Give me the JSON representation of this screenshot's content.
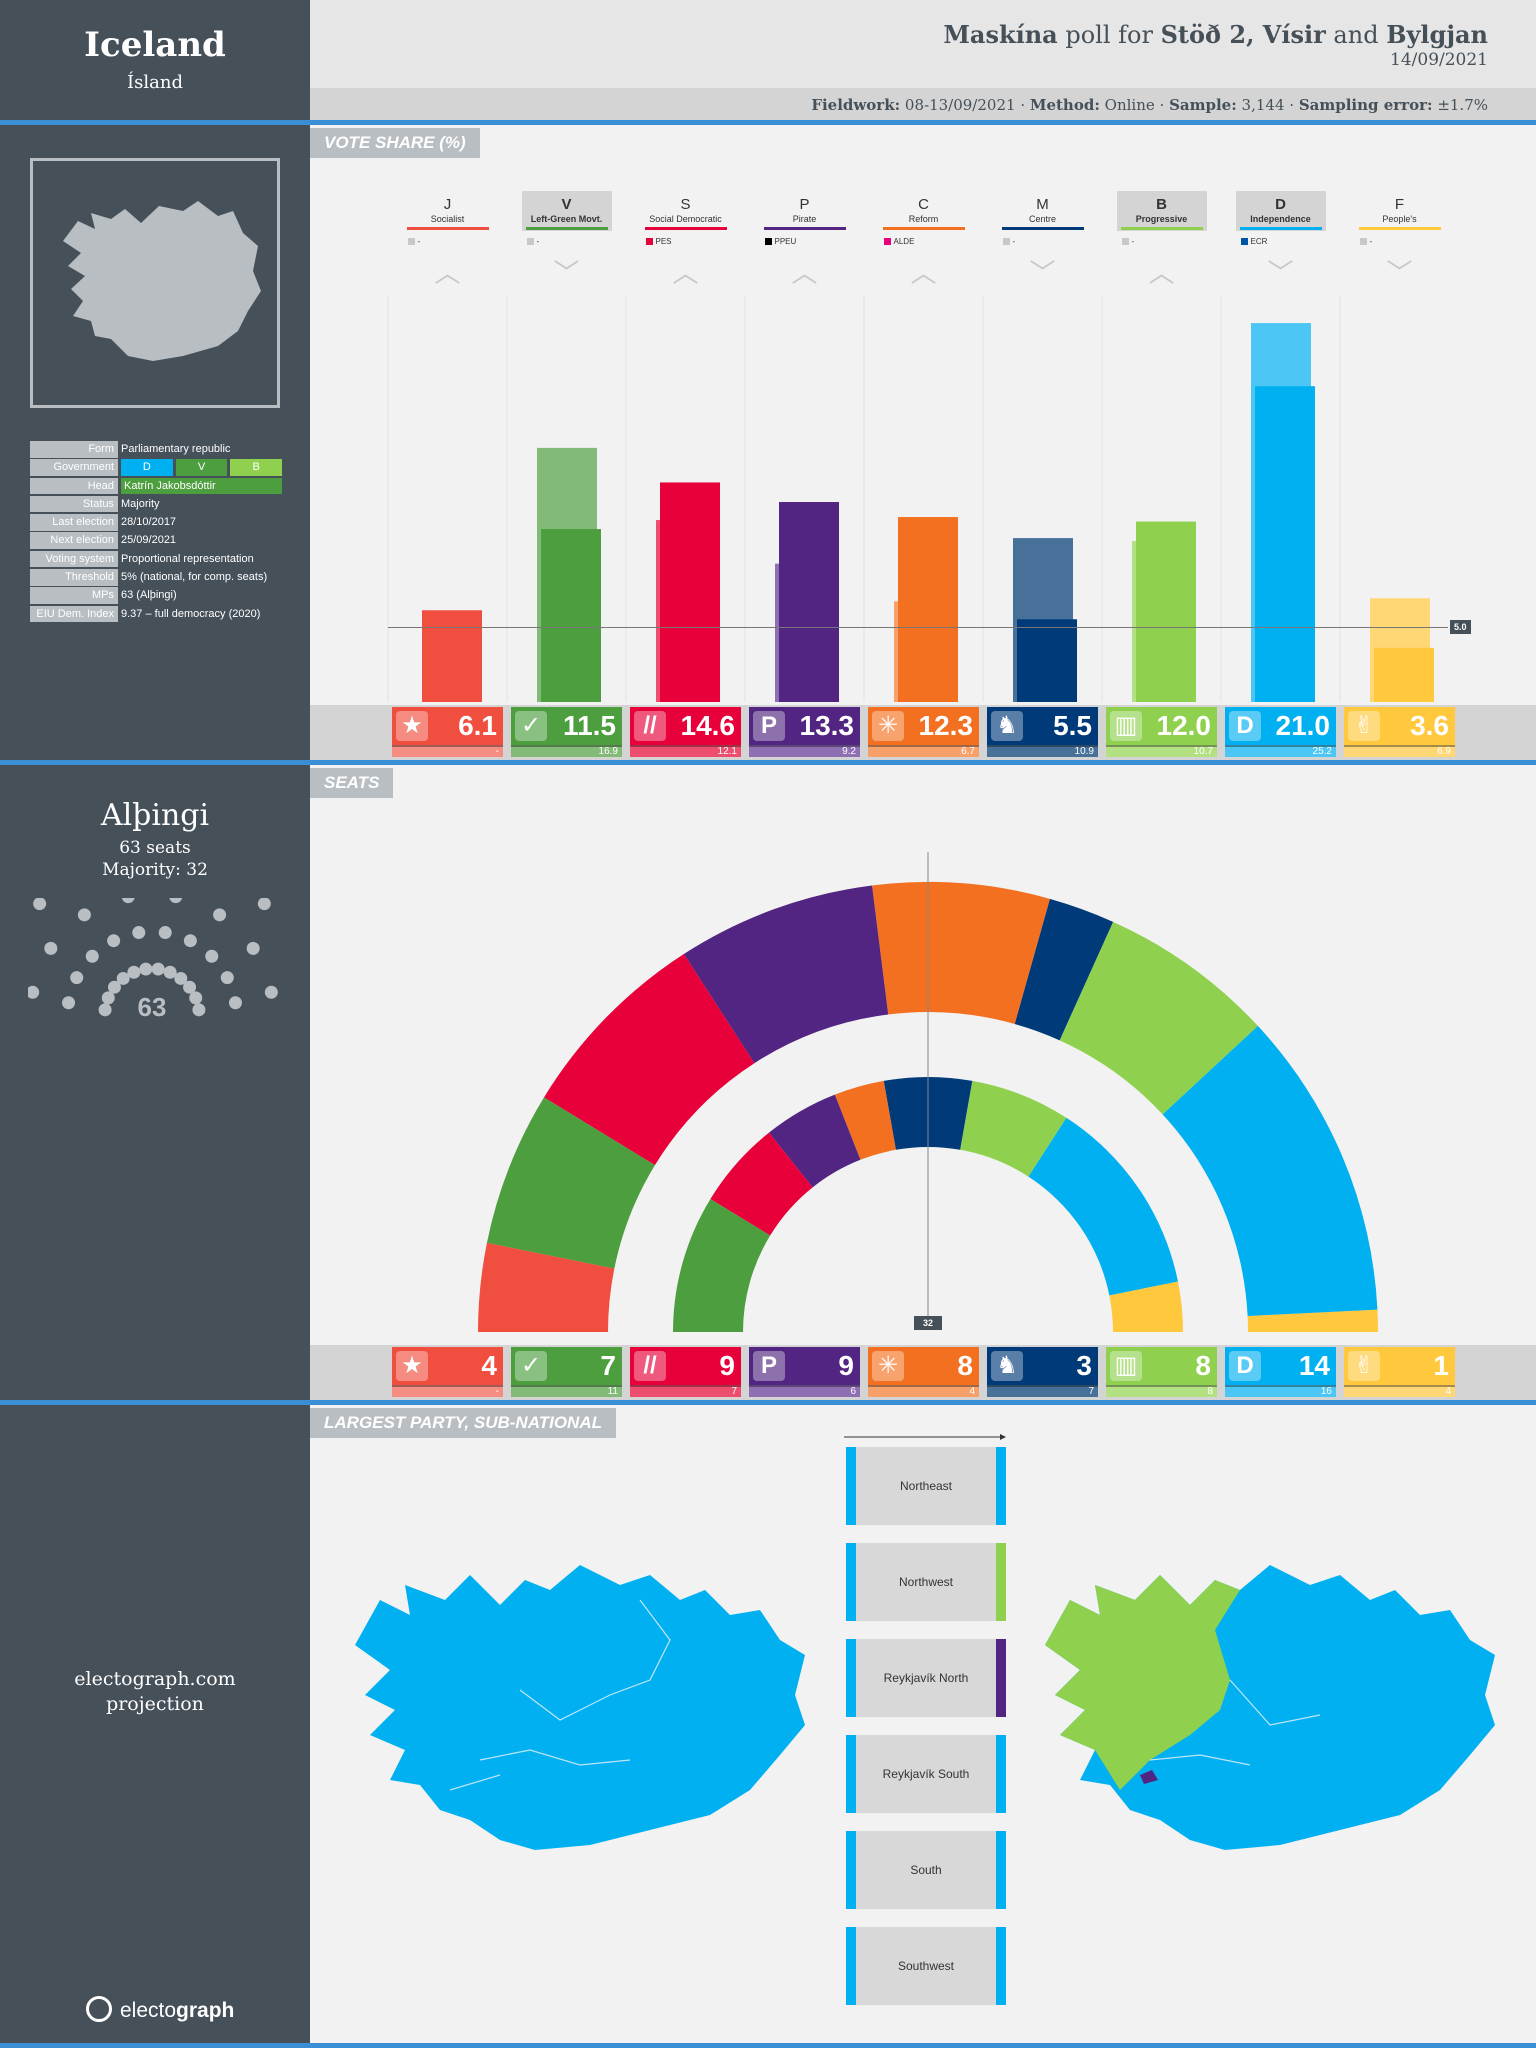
{
  "country": {
    "name": "Iceland",
    "local_name": "Ísland"
  },
  "info": [
    {
      "k": "Form",
      "v": "Parliamentary republic"
    },
    {
      "k": "Government",
      "v": ""
    },
    {
      "k": "Head",
      "v": "Katrín Jakobsdóttir"
    },
    {
      "k": "Status",
      "v": "Majority"
    },
    {
      "k": "Last election",
      "v": "28/10/2017"
    },
    {
      "k": "Next election",
      "v": "25/09/2021"
    },
    {
      "k": "Voting system",
      "v": "Proportional representation"
    },
    {
      "k": "Threshold",
      "v": "5% (national, for comp. seats)"
    },
    {
      "k": "MPs",
      "v": "63 (Alþingi)"
    },
    {
      "k": "EIU Dem. Index",
      "v": "9.37 – full democracy (2020)"
    }
  ],
  "government_parties": [
    {
      "code": "D",
      "color": "#00b0f0"
    },
    {
      "code": "V",
      "color": "#4c9e3f"
    },
    {
      "code": "B",
      "color": "#8fd14f"
    }
  ],
  "header": {
    "pollster": "Maskína",
    "poll_for": " poll for ",
    "media1": "Stöð 2, Vísir",
    "and": " and ",
    "media2": "Bylgjan",
    "date": "14/09/2021",
    "fieldwork_label": "Fieldwork:",
    "fieldwork_value": "08-13/09/2021",
    "method_label": "Method:",
    "method_value": "Online",
    "sample_label": "Sample:",
    "sample_value": "3,144",
    "error_label": "Sampling error:",
    "error_value": "±1.7%",
    "sep": " · "
  },
  "sections": {
    "vote_share": "VOTE SHARE (%)",
    "seats": "SEATS",
    "largest": "LARGEST PARTY, SUB-NATIONAL"
  },
  "parliament": {
    "name": "Alþingi",
    "seats_label": "63 seats",
    "majority_label": "Majority: 32",
    "total": "63",
    "majority_marker": "32"
  },
  "threshold_label": "5.0",
  "chart_data": {
    "type": "bar",
    "title": "VOTE SHARE (%)",
    "categories": [
      "J",
      "V",
      "S",
      "P",
      "C",
      "M",
      "B",
      "D",
      "F"
    ],
    "series": [
      {
        "name": "Poll (Maskína 14/09/2021)",
        "values": [
          6.1,
          11.5,
          14.6,
          13.3,
          12.3,
          5.5,
          12.0,
          21.0,
          3.6
        ]
      },
      {
        "name": "Last election (2017)",
        "values": [
          0,
          16.9,
          12.1,
          9.2,
          6.7,
          10.9,
          10.7,
          25.2,
          6.9
        ]
      }
    ],
    "seats": [
      4,
      7,
      9,
      9,
      8,
      3,
      8,
      14,
      1
    ],
    "seats_previous": [
      0,
      11,
      7,
      6,
      4,
      7,
      8,
      16,
      4
    ],
    "threshold": 5.0,
    "ylim": [
      0,
      27
    ]
  },
  "parties": [
    {
      "code": "J",
      "full": "Socialist",
      "eu": "-",
      "eu_color": "#c8c8c8",
      "trend": "up",
      "color": "#f04e3e",
      "prev_color": "#f48d82",
      "boxed": false,
      "logo": "★",
      "vote": "6.1",
      "prev": "-",
      "seats": "4",
      "seats_prev": "-"
    },
    {
      "code": "V",
      "full": "Left-Green Movt.",
      "eu": "-",
      "eu_color": "#c8c8c8",
      "trend": "down",
      "color": "#4c9e3f",
      "prev_color": "#82bb78",
      "boxed": true,
      "logo": "✓",
      "vote": "11.5",
      "prev": "16.9",
      "seats": "7",
      "seats_prev": "11"
    },
    {
      "code": "S",
      "full": "Social Democratic",
      "eu": "PES",
      "eu_color": "#e4003b",
      "trend": "up",
      "color": "#e8003a",
      "prev_color": "#ee4e6e",
      "boxed": false,
      "logo": "//",
      "vote": "14.6",
      "prev": "12.1",
      "seats": "9",
      "seats_prev": "7"
    },
    {
      "code": "P",
      "full": "Pirate",
      "eu": "PPEU",
      "eu_color": "#000000",
      "trend": "up",
      "color": "#512581",
      "prev_color": "#8e6fb2",
      "boxed": false,
      "logo": "P",
      "vote": "13.3",
      "prev": "9.2",
      "seats": "9",
      "seats_prev": "6"
    },
    {
      "code": "C",
      "full": "Reform",
      "eu": "ALDE",
      "eu_color": "#e5007e",
      "trend": "up",
      "color": "#f47021",
      "prev_color": "#f7a06a",
      "boxed": false,
      "logo": "✳",
      "vote": "12.3",
      "prev": "6.7",
      "seats": "8",
      "seats_prev": "4"
    },
    {
      "code": "M",
      "full": "Centre",
      "eu": "-",
      "eu_color": "#c8c8c8",
      "trend": "down",
      "color": "#003a78",
      "prev_color": "#48719a",
      "boxed": false,
      "logo": "♞",
      "vote": "5.5",
      "prev": "10.9",
      "seats": "3",
      "seats_prev": "7"
    },
    {
      "code": "B",
      "full": "Progressive",
      "eu": "-",
      "eu_color": "#c8c8c8",
      "trend": "up",
      "color": "#8fd14f",
      "prev_color": "#b3e083",
      "boxed": true,
      "logo": "▥",
      "vote": "12.0",
      "prev": "10.7",
      "seats": "8",
      "seats_prev": "8"
    },
    {
      "code": "D",
      "full": "Independence",
      "eu": "ECR",
      "eu_color": "#0054a5",
      "trend": "down",
      "color": "#00b0f0",
      "prev_color": "#4cc6f4",
      "boxed": true,
      "logo": "D",
      "vote": "21.0",
      "prev": "25.2",
      "seats": "14",
      "seats_prev": "16"
    },
    {
      "code": "F",
      "full": "People's",
      "eu": "-",
      "eu_color": "#c8c8c8",
      "trend": "down",
      "color": "#ffc83d",
      "prev_color": "#ffd774",
      "boxed": false,
      "logo": "✌",
      "vote": "3.6",
      "prev": "6.9",
      "seats": "1",
      "seats_prev": "4"
    }
  ],
  "regions": [
    {
      "name": "Northeast",
      "color_right": "#00b0f0"
    },
    {
      "name": "Northwest",
      "color_right": "#8fd14f"
    },
    {
      "name": "Reykjavík North",
      "color_right": "#512581"
    },
    {
      "name": "Reykjavík South",
      "color_right": "#00b0f0"
    },
    {
      "name": "South",
      "color_right": "#00b0f0"
    },
    {
      "name": "Southwest",
      "color_right": "#00b0f0"
    }
  ],
  "footer": {
    "site": "electograph.com",
    "projection": "projection",
    "brand_light": "electo",
    "brand_bold": "graph"
  }
}
